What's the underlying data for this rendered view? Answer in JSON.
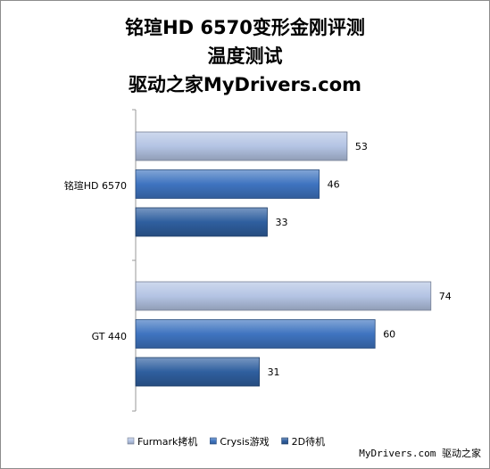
{
  "chart_data": {
    "type": "bar",
    "orientation": "horizontal",
    "title": [
      "铭瑄HD 6570变形金刚评测",
      "温度测试",
      "驱动之家MyDrivers.com"
    ],
    "categories": [
      "铭瑄HD 6570",
      "GT 440"
    ],
    "series": [
      {
        "name": "Furmark拷机",
        "values": [
          53,
          74
        ],
        "color": "#b4c4e4"
      },
      {
        "name": "Crysis游戏",
        "values": [
          46,
          60
        ],
        "color": "#3f74c0"
      },
      {
        "name": "2D待机",
        "values": [
          33,
          31
        ],
        "color": "#2f5f9f"
      }
    ],
    "xlim": [
      0,
      80
    ],
    "grid": false,
    "legend": "bottom"
  },
  "watermark": "MyDrivers.com 驱动之家"
}
